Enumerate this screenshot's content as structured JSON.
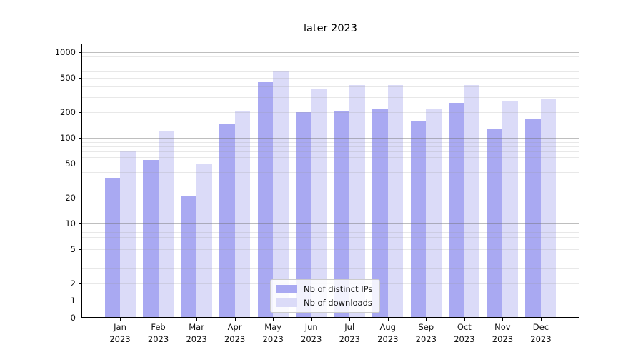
{
  "title": "later 2023",
  "chart_data": {
    "type": "bar",
    "title": "later 2023",
    "categories": [
      "Jan 2023",
      "Feb 2023",
      "Mar 2023",
      "Apr 2023",
      "May 2023",
      "Jun 2023",
      "Jul 2023",
      "Aug 2023",
      "Sep 2023",
      "Oct 2023",
      "Nov 2023",
      "Dec 2023"
    ],
    "series": [
      {
        "name": "Nb of distinct IPs",
        "color": "#a9a9f2",
        "values": [
          34,
          56,
          21,
          148,
          450,
          202,
          207,
          220,
          155,
          260,
          130,
          165
        ]
      },
      {
        "name": "Nb of downloads",
        "color": "#dbdbf8",
        "values": [
          70,
          120,
          50,
          207,
          595,
          380,
          415,
          415,
          220,
          415,
          270,
          285
        ]
      }
    ],
    "yscale": "symlog",
    "y_tick_labels": [
      0,
      1,
      2,
      5,
      10,
      20,
      50,
      100,
      200,
      500,
      1000
    ],
    "y_major_gridlines": [
      10,
      100,
      1000
    ],
    "y_minor_gridlines": [
      1,
      2,
      3,
      4,
      5,
      6,
      7,
      8,
      9,
      20,
      30,
      40,
      50,
      60,
      70,
      80,
      90,
      200,
      300,
      400,
      500,
      600,
      700,
      800,
      900
    ],
    "ylim": [
      0,
      1100
    ],
    "xlabel": "",
    "ylabel": "",
    "grid": "both",
    "legend_position": "lower center"
  },
  "legend": {
    "items": [
      {
        "label": "Nb of distinct IPs",
        "color": "#a9a9f2"
      },
      {
        "label": "Nb of downloads",
        "color": "#dbdbf8"
      }
    ]
  },
  "colors": {
    "bar_dark": "#a9a9f2",
    "bar_light": "#dbdbf8",
    "axis": "#000000",
    "grid_major": "#b0b0b0",
    "grid_minor": "#e2e2e2"
  }
}
